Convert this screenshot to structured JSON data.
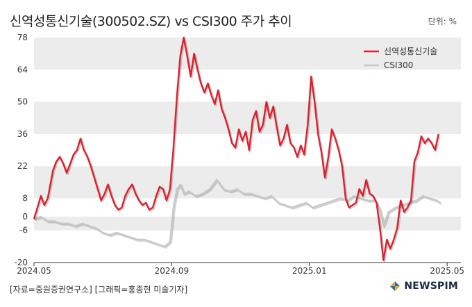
{
  "header": {
    "title": "신역성통신기술(300502.SZ) vs CSI300 주가 추이",
    "unit": "단위: %"
  },
  "footer": {
    "source": "[자료=중원증권연구소] [그래픽=홍종현 미술기자]",
    "logo_text": "NEWSPIM"
  },
  "colors": {
    "series1": "#e01e2a",
    "series2": "#c8c8c8",
    "band": "#ececec"
  },
  "chart_data": {
    "type": "line",
    "title": "신역성통신기술(300502.SZ) vs CSI300 주가 추이",
    "xlabel": "",
    "ylabel": "단위: %",
    "ylim": [
      -20,
      78
    ],
    "yticks": [
      78,
      64,
      50,
      36,
      22,
      8,
      0,
      -6,
      -20
    ],
    "xticks": [
      {
        "x": 0,
        "label": "2024.05"
      },
      {
        "x": 4,
        "label": "2024.09"
      },
      {
        "x": 8,
        "label": "2025.01"
      },
      {
        "x": 12,
        "label": "2025.05"
      }
    ],
    "xlim": [
      0,
      12.4
    ],
    "legend_position": "top-right",
    "series": [
      {
        "name": "신역성통신기술",
        "points": [
          [
            0.0,
            -1
          ],
          [
            0.1,
            4
          ],
          [
            0.2,
            9
          ],
          [
            0.3,
            5
          ],
          [
            0.4,
            8
          ],
          [
            0.55,
            20
          ],
          [
            0.65,
            24
          ],
          [
            0.75,
            26
          ],
          [
            0.85,
            23
          ],
          [
            0.95,
            19
          ],
          [
            1.05,
            23
          ],
          [
            1.15,
            27
          ],
          [
            1.25,
            29
          ],
          [
            1.35,
            34
          ],
          [
            1.45,
            29
          ],
          [
            1.55,
            26
          ],
          [
            1.65,
            22
          ],
          [
            1.75,
            17
          ],
          [
            1.85,
            12
          ],
          [
            1.95,
            7
          ],
          [
            2.05,
            10
          ],
          [
            2.15,
            14
          ],
          [
            2.25,
            9
          ],
          [
            2.35,
            5
          ],
          [
            2.45,
            3
          ],
          [
            2.55,
            4
          ],
          [
            2.65,
            9
          ],
          [
            2.75,
            12
          ],
          [
            2.85,
            14
          ],
          [
            2.95,
            10
          ],
          [
            3.05,
            7
          ],
          [
            3.15,
            5
          ],
          [
            3.25,
            6
          ],
          [
            3.35,
            3
          ],
          [
            3.45,
            4
          ],
          [
            3.55,
            9
          ],
          [
            3.65,
            13
          ],
          [
            3.75,
            12
          ],
          [
            3.85,
            7
          ],
          [
            3.95,
            12
          ],
          [
            4.05,
            30
          ],
          [
            4.15,
            52
          ],
          [
            4.25,
            70
          ],
          [
            4.35,
            78
          ],
          [
            4.45,
            70
          ],
          [
            4.55,
            61
          ],
          [
            4.65,
            71
          ],
          [
            4.75,
            64
          ],
          [
            4.85,
            58
          ],
          [
            4.95,
            54
          ],
          [
            5.05,
            58
          ],
          [
            5.15,
            53
          ],
          [
            5.25,
            49
          ],
          [
            5.35,
            55
          ],
          [
            5.45,
            47
          ],
          [
            5.55,
            43
          ],
          [
            5.65,
            38
          ],
          [
            5.75,
            32
          ],
          [
            5.85,
            30
          ],
          [
            5.95,
            38
          ],
          [
            6.05,
            33
          ],
          [
            6.15,
            37
          ],
          [
            6.25,
            29
          ],
          [
            6.35,
            42
          ],
          [
            6.45,
            46
          ],
          [
            6.55,
            37
          ],
          [
            6.65,
            40
          ],
          [
            6.75,
            50
          ],
          [
            6.85,
            43
          ],
          [
            6.95,
            48
          ],
          [
            7.05,
            39
          ],
          [
            7.15,
            31
          ],
          [
            7.25,
            34
          ],
          [
            7.35,
            40
          ],
          [
            7.45,
            32
          ],
          [
            7.55,
            30
          ],
          [
            7.65,
            26
          ],
          [
            7.75,
            31
          ],
          [
            7.85,
            27
          ],
          [
            7.95,
            40
          ],
          [
            8.05,
            61
          ],
          [
            8.15,
            50
          ],
          [
            8.25,
            36
          ],
          [
            8.35,
            28
          ],
          [
            8.45,
            17
          ],
          [
            8.55,
            26
          ],
          [
            8.65,
            38
          ],
          [
            8.75,
            34
          ],
          [
            8.85,
            29
          ],
          [
            8.95,
            22
          ],
          [
            9.05,
            8
          ],
          [
            9.15,
            4
          ],
          [
            9.25,
            5
          ],
          [
            9.35,
            6
          ],
          [
            9.45,
            12
          ],
          [
            9.55,
            9
          ],
          [
            9.65,
            16
          ],
          [
            9.75,
            10
          ],
          [
            9.85,
            9
          ],
          [
            9.95,
            6
          ],
          [
            10.05,
            -5
          ],
          [
            10.15,
            -19
          ],
          [
            10.25,
            -10
          ],
          [
            10.35,
            -14
          ],
          [
            10.45,
            -10
          ],
          [
            10.55,
            -5
          ],
          [
            10.65,
            7
          ],
          [
            10.75,
            2
          ],
          [
            10.85,
            4
          ],
          [
            10.95,
            7
          ],
          [
            11.05,
            24
          ],
          [
            11.15,
            28
          ],
          [
            11.25,
            35
          ],
          [
            11.35,
            32
          ],
          [
            11.45,
            34
          ],
          [
            11.55,
            32
          ],
          [
            11.65,
            29
          ],
          [
            11.75,
            36
          ]
        ]
      },
      {
        "name": "CSI300",
        "points": [
          [
            0.0,
            -1
          ],
          [
            0.2,
            0
          ],
          [
            0.4,
            -2
          ],
          [
            0.6,
            -2
          ],
          [
            0.8,
            -3
          ],
          [
            1.0,
            -3
          ],
          [
            1.2,
            -4
          ],
          [
            1.4,
            -3
          ],
          [
            1.6,
            -4
          ],
          [
            1.8,
            -5
          ],
          [
            2.0,
            -7
          ],
          [
            2.2,
            -8
          ],
          [
            2.4,
            -7
          ],
          [
            2.6,
            -8
          ],
          [
            2.8,
            -9
          ],
          [
            3.0,
            -10
          ],
          [
            3.2,
            -10
          ],
          [
            3.4,
            -11
          ],
          [
            3.6,
            -12
          ],
          [
            3.8,
            -13
          ],
          [
            3.95,
            -11
          ],
          [
            4.05,
            4
          ],
          [
            4.15,
            12
          ],
          [
            4.25,
            14
          ],
          [
            4.35,
            10
          ],
          [
            4.5,
            11
          ],
          [
            4.7,
            9
          ],
          [
            4.9,
            10
          ],
          [
            5.1,
            12
          ],
          [
            5.3,
            16
          ],
          [
            5.5,
            12
          ],
          [
            5.7,
            11
          ],
          [
            5.9,
            12
          ],
          [
            6.1,
            10
          ],
          [
            6.3,
            10
          ],
          [
            6.5,
            9
          ],
          [
            6.7,
            8
          ],
          [
            6.9,
            9
          ],
          [
            7.1,
            6
          ],
          [
            7.3,
            5
          ],
          [
            7.5,
            4
          ],
          [
            7.7,
            5
          ],
          [
            7.9,
            6
          ],
          [
            8.1,
            4
          ],
          [
            8.3,
            5
          ],
          [
            8.5,
            6
          ],
          [
            8.7,
            7
          ],
          [
            8.9,
            8
          ],
          [
            9.1,
            7
          ],
          [
            9.3,
            9
          ],
          [
            9.5,
            8
          ],
          [
            9.7,
            7
          ],
          [
            9.9,
            7
          ],
          [
            10.05,
            3
          ],
          [
            10.15,
            -4
          ],
          [
            10.3,
            2
          ],
          [
            10.5,
            4
          ],
          [
            10.7,
            5
          ],
          [
            10.9,
            6
          ],
          [
            11.1,
            7
          ],
          [
            11.3,
            9
          ],
          [
            11.5,
            8
          ],
          [
            11.7,
            7
          ],
          [
            11.8,
            6
          ]
        ]
      }
    ]
  }
}
